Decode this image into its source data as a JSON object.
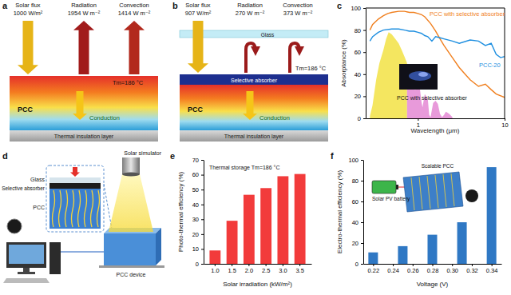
{
  "panel_labels": [
    "a",
    "b",
    "c",
    "d",
    "e",
    "f"
  ],
  "panel_a": {
    "solar_flux": "Solar flux",
    "solar_flux_value": "1000 W/m²",
    "radiation": "Radiation",
    "radiation_value": "1954 W m⁻²",
    "convection": "Convection",
    "convection_value": "1414 W m⁻²",
    "temperature": "Tm=186 °C",
    "pcc": "PCC",
    "conduction": "Conduction",
    "insulation": "Thermal insulation layer"
  },
  "panel_b": {
    "solar_flux": "Solar flux",
    "solar_flux_value": "907 W/m²",
    "radiation": "Radiation",
    "radiation_value": "270 W m⁻²",
    "convection": "Convection",
    "convection_value": "373 W m⁻²",
    "glass": "Glass",
    "temperature": "Tm=186 °C",
    "absorber": "Selective absorber",
    "pcc": "PCC",
    "conduction": "Conduction",
    "insulation": "Thermal insulation layer"
  },
  "panel_d": {
    "glass": "Glass",
    "absorber": "Selective absorber",
    "pcc": "PCC",
    "simulator": "Solar simulator",
    "device": "PCC device"
  },
  "chart_data": [
    {
      "type": "line",
      "xlabel": "Wavelength (μm)",
      "ylabel": "Absorptance (%)",
      "log": "x",
      "xlim": [
        0.25,
        10
      ],
      "xticks": [
        1,
        10
      ],
      "ylim": [
        0,
        100
      ],
      "yticks": [
        0,
        20,
        40,
        60,
        80,
        100
      ],
      "annotations": [
        "PCC with selective absorber"
      ],
      "series": [
        {
          "name": "PCC with selective absorber",
          "color": "#f07f1e",
          "x": [
            0.28,
            0.3,
            0.35,
            0.4,
            0.45,
            0.5,
            0.6,
            0.7,
            0.8,
            0.9,
            1.0,
            1.1,
            1.2,
            1.4,
            1.6,
            1.8,
            2.0,
            2.5,
            3,
            3.5,
            4,
            5,
            6,
            7,
            8,
            10
          ],
          "values": [
            80,
            85,
            90,
            93,
            95,
            96,
            97,
            97,
            96,
            96,
            95,
            94,
            92,
            86,
            79,
            72,
            66,
            55,
            46,
            40,
            35,
            29,
            31,
            26,
            22,
            19
          ]
        },
        {
          "name": "PCC-20",
          "color": "#1e8fe0",
          "x": [
            0.28,
            0.3,
            0.35,
            0.4,
            0.5,
            0.6,
            0.7,
            0.8,
            0.9,
            1.0,
            1.1,
            1.2,
            1.3,
            1.45,
            1.6,
            1.8,
            2.0,
            2.5,
            3,
            4,
            5,
            6,
            7,
            8,
            9,
            10
          ],
          "values": [
            70,
            74,
            78,
            80,
            81,
            81,
            80,
            79,
            79,
            78,
            77,
            75,
            74,
            70,
            74,
            73,
            72,
            70,
            68,
            71,
            70,
            66,
            68,
            58,
            55,
            56
          ]
        },
        {
          "type": "area",
          "color": "#f3e34f",
          "x": [
            0.28,
            0.3,
            0.33,
            0.36,
            0.4,
            0.43,
            0.46,
            0.5,
            0.55,
            0.6,
            0.65,
            0.7,
            0.75
          ],
          "values": [
            2,
            12,
            35,
            50,
            62,
            72,
            78,
            76,
            72,
            68,
            62,
            56,
            50
          ]
        },
        {
          "type": "area",
          "color": "#e58fd6",
          "x": [
            0.75,
            0.8,
            0.85,
            0.9,
            0.93,
            0.97,
            1.0,
            1.05,
            1.1,
            1.13,
            1.2,
            1.3,
            1.35,
            1.4,
            1.5,
            1.6,
            1.7,
            1.8,
            1.9,
            2.0,
            2.1,
            2.2,
            2.3,
            2.5
          ],
          "values": [
            48,
            44,
            40,
            38,
            25,
            34,
            32,
            28,
            15,
            10,
            22,
            18,
            3,
            1,
            14,
            16,
            13,
            4,
            1,
            3,
            6,
            5,
            4,
            1
          ]
        }
      ]
    },
    {
      "type": "bar",
      "xlabel": "Solar irradiation (kW/m²)",
      "ylabel": "Photo-thermal efficiency (%)",
      "categories": [
        "1.0",
        "1.5",
        "2.0",
        "2.5",
        "3.0",
        "3.5"
      ],
      "values": [
        9,
        29,
        46.5,
        51,
        59,
        60.5
      ],
      "color": "#f23b3b",
      "ylim": [
        0,
        70
      ],
      "yticks": [
        0,
        10,
        20,
        30,
        40,
        50,
        60,
        70
      ],
      "annotations": [
        "Thermal storage Tm=186 °C"
      ]
    },
    {
      "type": "bar",
      "xlabel": "Voltage (V)",
      "ylabel": "Electro-thermal efficiency (%)",
      "x": [
        0.22,
        0.25,
        0.28,
        0.31,
        0.34
      ],
      "values": [
        11,
        17,
        28,
        40,
        93
      ],
      "color": "#2f78c4",
      "xlim": [
        0.21,
        0.35
      ],
      "xticks": [
        {
          "value": 0.22,
          "label": "0.22"
        },
        {
          "value": 0.24,
          "label": "0.24"
        },
        {
          "value": 0.26,
          "label": "0.26"
        },
        {
          "value": 0.28,
          "label": "0.28"
        },
        {
          "value": 0.3,
          "label": "0.30"
        },
        {
          "value": 0.32,
          "label": "0.32"
        },
        {
          "value": 0.34,
          "label": "0.34"
        }
      ],
      "ylim": [
        0,
        100
      ],
      "yticks": [
        0,
        20,
        40,
        60,
        80,
        100
      ],
      "annotations": [
        "Solar PV battery",
        "Scalable PCC"
      ]
    }
  ]
}
